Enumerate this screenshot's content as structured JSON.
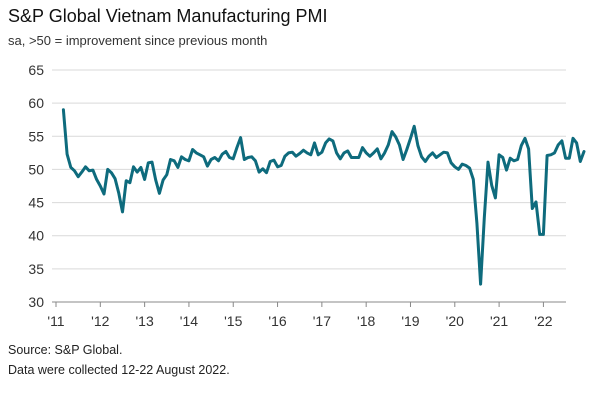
{
  "title": "S&P Global Vietnam Manufacturing PMI",
  "subtitle": "sa, >50 = improvement since previous month",
  "footer": {
    "source": "Source: S&P Global.",
    "note": "Data were collected 12-22 August 2022."
  },
  "colors": {
    "line": "#0e6b7d",
    "grid": "#d9d9d9",
    "axis": "#888888"
  },
  "chart_data": {
    "type": "line",
    "title": "S&P Global Vietnam Manufacturing PMI",
    "subtitle": "sa, >50 = improvement since previous month",
    "xlabel": "",
    "ylabel": "",
    "ylim": [
      30,
      65
    ],
    "yticks": [
      30,
      35,
      40,
      45,
      50,
      55,
      60,
      65
    ],
    "xlim": [
      "2011-03",
      "2022-07"
    ],
    "xticks": [
      "'11",
      "'12",
      "'13",
      "'14",
      "'15",
      "'16",
      "'17",
      "'18",
      "'19",
      "'20",
      "'21",
      "'22"
    ],
    "grid": true,
    "legend": "none",
    "series": [
      {
        "start": "2011-03",
        "frequency": "monthly",
        "values": [
          59.0,
          52.3,
          50.3,
          49.8,
          48.9,
          49.6,
          50.4,
          49.8,
          49.9,
          48.5,
          47.5,
          46.3,
          50.0,
          49.5,
          48.6,
          46.4,
          43.6,
          48.3,
          48.0,
          50.4,
          49.6,
          50.3,
          48.5,
          51.0,
          51.1,
          48.4,
          46.4,
          48.4,
          49.2,
          51.5,
          51.3,
          50.3,
          51.9,
          51.5,
          51.3,
          53.0,
          52.5,
          52.2,
          51.9,
          50.5,
          51.5,
          51.8,
          51.3,
          52.3,
          52.7,
          51.8,
          51.6,
          53.3,
          54.8,
          51.5,
          51.8,
          51.9,
          51.3,
          49.6,
          50.1,
          49.5,
          51.2,
          51.4,
          50.4,
          50.6,
          52.0,
          52.5,
          52.6,
          52.0,
          52.4,
          52.9,
          52.5,
          52.2,
          54.0,
          52.2,
          52.6,
          54.0,
          54.6,
          54.3,
          52.5,
          51.6,
          52.5,
          52.8,
          51.8,
          51.8,
          51.8,
          53.3,
          52.5,
          52.0,
          52.5,
          53.1,
          51.6,
          52.5,
          53.7,
          55.7,
          54.9,
          53.7,
          51.5,
          53.0,
          54.7,
          56.5,
          53.6,
          51.9,
          51.2,
          52.0,
          52.5,
          51.8,
          52.2,
          52.6,
          52.5,
          51.0,
          50.4,
          50.0,
          50.8,
          50.6,
          50.2,
          48.5,
          41.9,
          32.7,
          42.7,
          51.1,
          47.6,
          45.7,
          52.2,
          51.8,
          49.9,
          51.7,
          51.3,
          51.5,
          53.6,
          54.7,
          53.1,
          44.1,
          45.1,
          40.2,
          40.2,
          52.1,
          52.2,
          52.5,
          53.7,
          54.3,
          51.7,
          51.7,
          54.7,
          54.0,
          51.2,
          52.7
        ]
      }
    ]
  }
}
